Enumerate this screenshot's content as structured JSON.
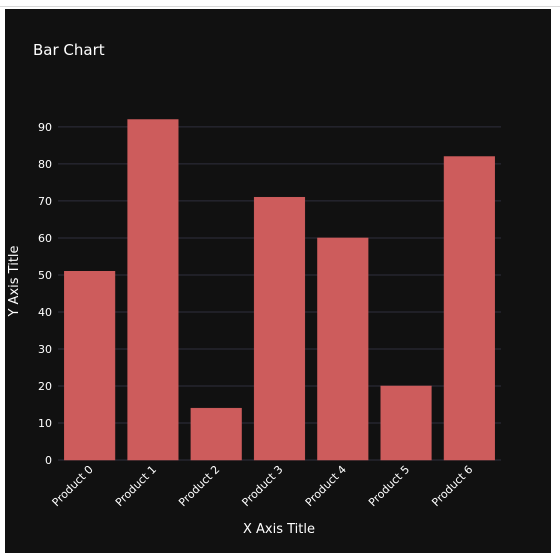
{
  "chart_data": {
    "type": "bar",
    "title": "Bar Chart",
    "xlabel": "X Axis Title",
    "ylabel": "Y Axis Title",
    "categories": [
      "Product 0",
      "Product 1",
      "Product 2",
      "Product 3",
      "Product 4",
      "Product 5",
      "Product 6"
    ],
    "values": [
      51,
      92,
      14,
      71,
      60,
      20,
      82
    ],
    "ylim": [
      0,
      97
    ],
    "yticks": [
      0,
      10,
      20,
      30,
      40,
      50,
      60,
      70,
      80,
      90
    ],
    "grid": true,
    "legend": "none",
    "colors": {
      "bar": "#cd5c5c",
      "background": "#111111",
      "grid": "#2f2f3d",
      "text": "#ffffff"
    }
  }
}
